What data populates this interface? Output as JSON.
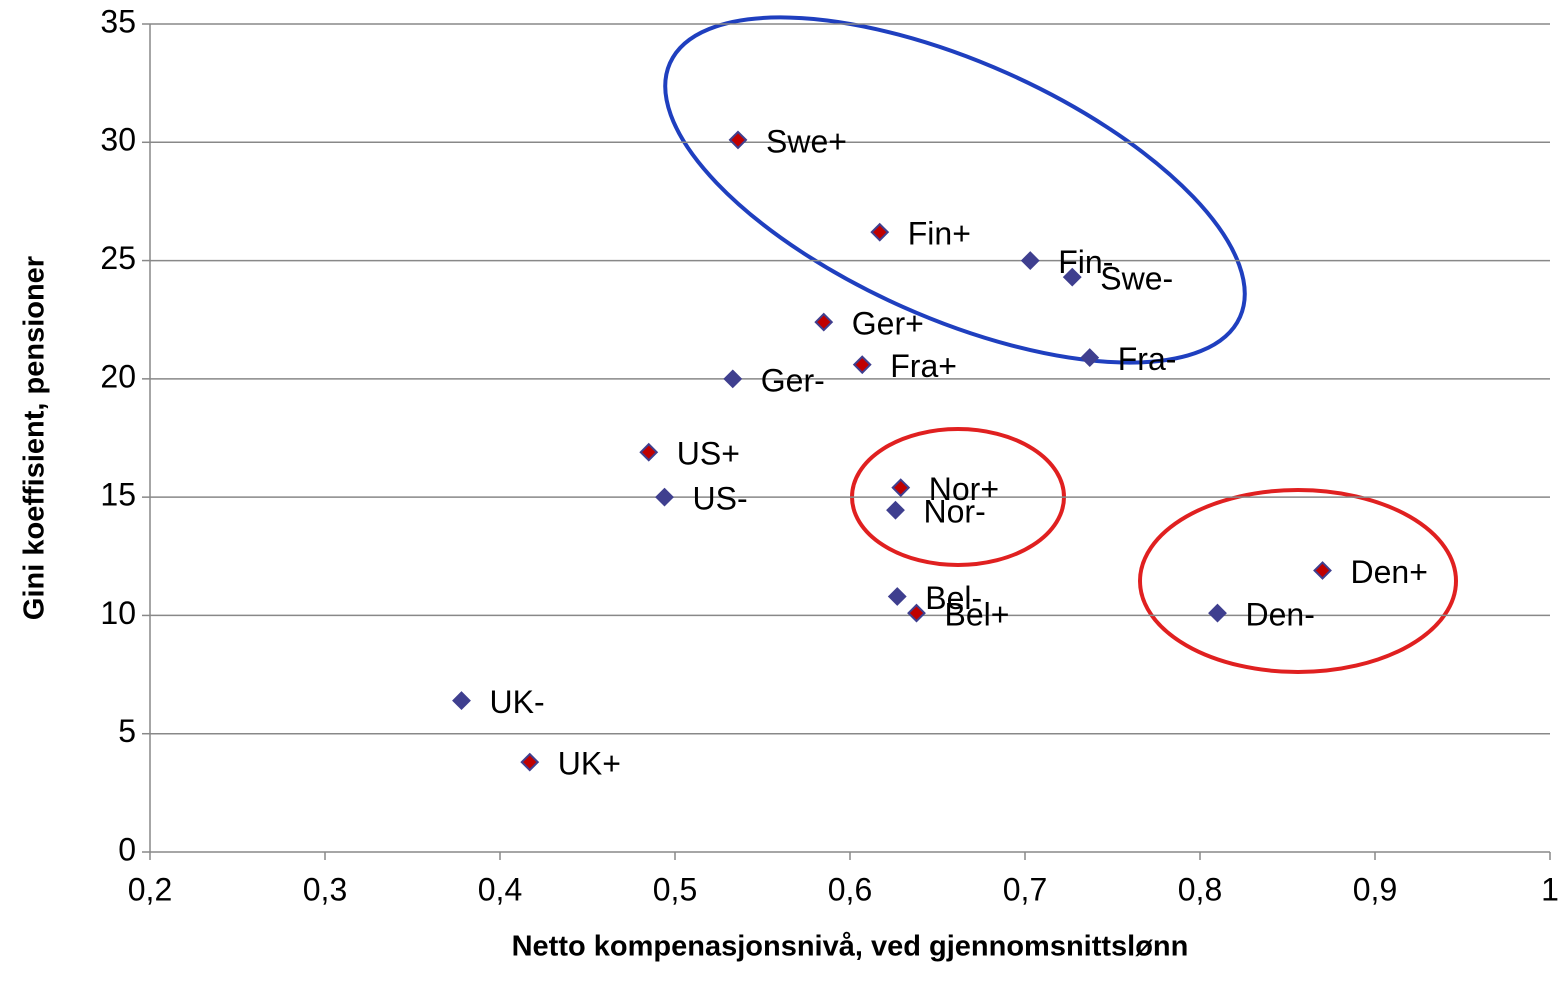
{
  "chart_data": {
    "type": "scatter",
    "xlabel": "Netto kompenasjonsnivå, ved gjennomsnittslønn",
    "ylabel": "Gini koeffisient, pensioner",
    "xlim": [
      0.2,
      1
    ],
    "ylim": [
      0,
      35
    ],
    "xticks": [
      {
        "value": 0.2,
        "label": "0,2"
      },
      {
        "value": 0.3,
        "label": "0,3"
      },
      {
        "value": 0.4,
        "label": "0,4"
      },
      {
        "value": 0.5,
        "label": "0,5"
      },
      {
        "value": 0.6,
        "label": "0,6"
      },
      {
        "value": 0.7,
        "label": "0,7"
      },
      {
        "value": 0.8,
        "label": "0,8"
      },
      {
        "value": 0.9,
        "label": "0,9"
      },
      1
    ],
    "yticks": [
      0,
      5,
      10,
      15,
      20,
      25,
      30,
      35
    ],
    "grid": true,
    "series": [
      {
        "color": "#c00000",
        "labels": [
          "Swe+",
          "Fin+",
          "Ger+",
          "Fra+",
          "US+",
          "Nor+",
          "Bel+",
          "Den+",
          "UK+"
        ],
        "x": [
          0.536,
          0.617,
          0.585,
          0.607,
          0.485,
          0.629,
          0.638,
          0.87,
          0.417
        ],
        "values": [
          30.1,
          26.2,
          22.4,
          20.6,
          16.9,
          15.4,
          10.1,
          11.9,
          3.8
        ]
      },
      {
        "color": "#3f3f8f",
        "labels": [
          "Fin-",
          "Swe-",
          "Fra-",
          "Ger-",
          "US-",
          "Nor-",
          "Bel-",
          "Den-",
          "UK-"
        ],
        "x": [
          0.703,
          0.727,
          0.737,
          0.533,
          0.494,
          0.626,
          0.627,
          0.81,
          0.378
        ],
        "values": [
          25.0,
          24.3,
          20.9,
          20.0,
          15.0,
          14.45,
          10.8,
          10.1,
          6.4
        ]
      }
    ]
  }
}
